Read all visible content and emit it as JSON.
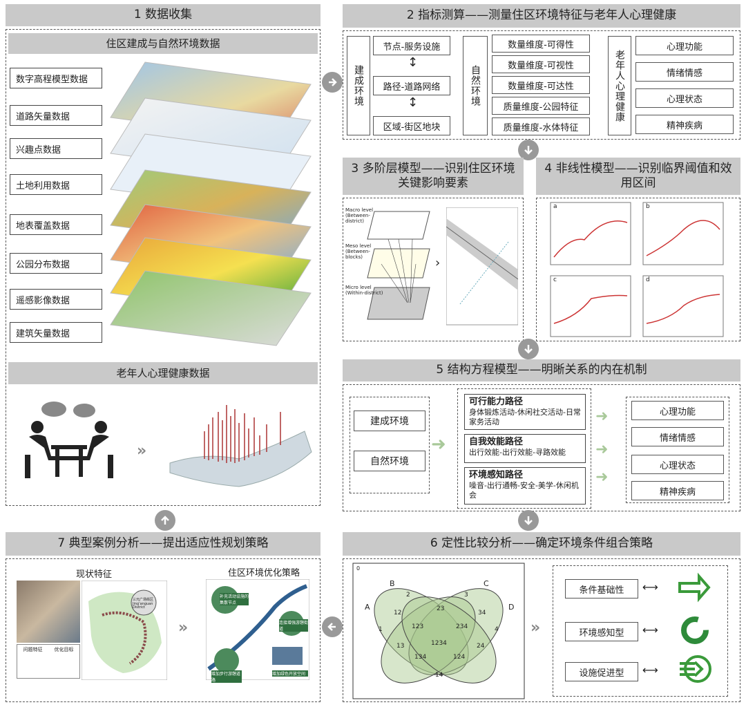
{
  "sec1": {
    "title": "1  数据收集",
    "subtitle": "住区建成与自然环境数据",
    "layers": [
      "数字高程模型数据",
      "道路矢量数据",
      "兴趣点数据",
      "土地利用数据",
      "地表覆盖数据",
      "公园分布数据",
      "遥感影像数据",
      "建筑矢量数据"
    ],
    "health_title": "老年人心理健康数据"
  },
  "sec2": {
    "title": "2  指标测算——测量住区环境特征与老年人心理健康",
    "built_label": "建成环境",
    "built_items": [
      "节点-服务设施",
      "路径-道路网络",
      "区域-街区地块"
    ],
    "natural_label": "自然环境",
    "natural_items": [
      "数量维度-可得性",
      "数量维度-可视性",
      "数量维度-可达性",
      "质量维度-公园特征",
      "质量维度-水体特征"
    ],
    "health_label": "老年人心理健康",
    "health_items": [
      "心理功能",
      "情绪情感",
      "心理状态",
      "精神疾病"
    ]
  },
  "sec3": {
    "title": "3  多阶层模型——识别住区环境关键影响要素",
    "levels": [
      "Macro level (Between-district)",
      "Meso level (Between-blocks)",
      "Micro level (Within-district)"
    ]
  },
  "sec4": {
    "title": "4  非线性模型——识别临界阈值和效用区间",
    "panels": [
      "a",
      "b",
      "c",
      "d"
    ]
  },
  "sec5": {
    "title": "5  结构方程模型——明晰关系的内在机制",
    "inputs": [
      "建成环境",
      "自然环境"
    ],
    "paths": [
      {
        "name": "可行能力路径",
        "desc": "身体锻炼活动-休闲社交活动-日常家务活动"
      },
      {
        "name": "自我效能路径",
        "desc": "出行效能-出行效能-寻路效能"
      },
      {
        "name": "环境感知路径",
        "desc": "噪音-出行通畅-安全-美学-休闲机会"
      }
    ],
    "outputs": [
      "心理功能",
      "情绪情感",
      "心理状态",
      "精神疾病"
    ]
  },
  "sec6": {
    "title": "6  定性比较分析——确定环境条件组合策略",
    "venn": {
      "corner": "0",
      "sets": [
        "A",
        "B",
        "C",
        "D"
      ],
      "regions": [
        "2",
        "3",
        "1",
        "4",
        "12",
        "23",
        "34",
        "123",
        "234",
        "1234",
        "13",
        "24",
        "134",
        "124",
        "14"
      ]
    },
    "types": [
      "条件基础性",
      "环境感知型",
      "设施促进型"
    ]
  },
  "sec7": {
    "title": "7  典型案例分析——提出适应性规划策略",
    "left_title": "现状特征",
    "right_title": "住区环境优化策略",
    "table_head": [
      "问题特征",
      "优化目标"
    ],
    "map_label": "三元广场街区 Jing'anguan District",
    "tags": [
      "补充活动设施的集散节点",
      "连接增强游憩街道",
      "增加步行游憩道路",
      "增加绿色开放空间"
    ]
  }
}
